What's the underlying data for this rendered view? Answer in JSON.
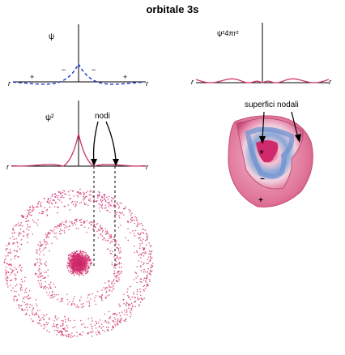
{
  "title": "orbitale 3s",
  "labels": {
    "psi": "ψ",
    "psi2": "ψ²",
    "radial": "ψ²4πr²",
    "r": "r",
    "nodi": "nodi",
    "superfici": "superfici nodali",
    "plus": "+",
    "minus": "−"
  },
  "colors": {
    "curve": "#cc3366",
    "dashed": "#1a33cc",
    "dots": "#cc2266"
  }
}
